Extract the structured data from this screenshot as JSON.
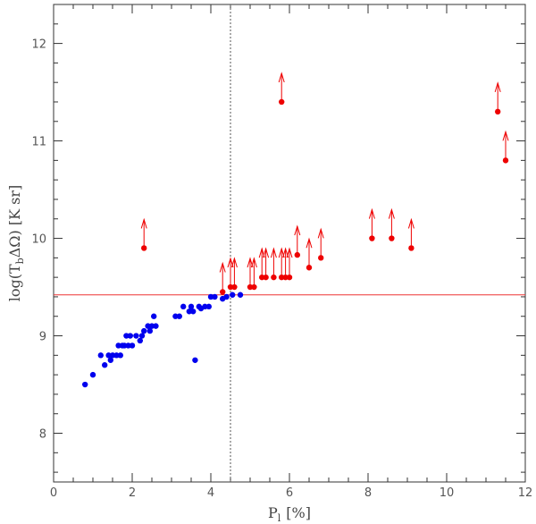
{
  "chart_data": {
    "type": "scatter",
    "title": "",
    "xlabel": "P",
    "xlabel_sub": "l",
    "xlabel_unit": "[%]",
    "ylabel": "log(T",
    "ylabel_sub": "b",
    "ylabel_rest": "ΔΩ)  [K sr]",
    "xlim": [
      0,
      12
    ],
    "ylim": [
      7.5,
      12.4
    ],
    "x_ticks": [
      0,
      2,
      4,
      6,
      8,
      10,
      12
    ],
    "y_ticks": [
      8,
      9,
      10,
      11,
      12
    ],
    "reference_lines": {
      "vertical_x": 4.5,
      "horizontal_y": 9.42
    },
    "colors": {
      "series_blue": "#0000ee",
      "series_red": "#ee0000",
      "hline": "#ee3333",
      "vline": "#555555",
      "axes": "#333333"
    },
    "series": [
      {
        "name": "blue",
        "marker": "filled-circle",
        "points": [
          [
            0.8,
            8.5
          ],
          [
            1.0,
            8.6
          ],
          [
            1.2,
            8.8
          ],
          [
            1.3,
            8.7
          ],
          [
            1.4,
            8.8
          ],
          [
            1.45,
            8.75
          ],
          [
            1.5,
            8.8
          ],
          [
            1.6,
            8.8
          ],
          [
            1.65,
            8.9
          ],
          [
            1.7,
            8.8
          ],
          [
            1.75,
            8.9
          ],
          [
            1.8,
            8.9
          ],
          [
            1.85,
            9.0
          ],
          [
            1.9,
            8.9
          ],
          [
            1.95,
            9.0
          ],
          [
            2.0,
            8.9
          ],
          [
            2.1,
            9.0
          ],
          [
            2.2,
            8.95
          ],
          [
            2.25,
            9.0
          ],
          [
            2.3,
            9.05
          ],
          [
            2.4,
            9.1
          ],
          [
            2.45,
            9.05
          ],
          [
            2.5,
            9.1
          ],
          [
            2.55,
            9.2
          ],
          [
            2.6,
            9.1
          ],
          [
            3.1,
            9.2
          ],
          [
            3.2,
            9.2
          ],
          [
            3.3,
            9.3
          ],
          [
            3.45,
            9.25
          ],
          [
            3.5,
            9.3
          ],
          [
            3.55,
            9.25
          ],
          [
            3.6,
            8.75
          ],
          [
            3.7,
            9.3
          ],
          [
            3.75,
            9.28
          ],
          [
            3.85,
            9.3
          ],
          [
            3.95,
            9.3
          ],
          [
            4.0,
            9.4
          ],
          [
            4.1,
            9.4
          ],
          [
            4.3,
            9.38
          ],
          [
            4.4,
            9.4
          ],
          [
            4.55,
            9.42
          ],
          [
            4.75,
            9.42
          ]
        ]
      },
      {
        "name": "red (lower limits)",
        "marker": "filled-circle-with-up-arrow",
        "points": [
          [
            2.3,
            9.9
          ],
          [
            4.3,
            9.45
          ],
          [
            4.5,
            9.5
          ],
          [
            4.6,
            9.5
          ],
          [
            5.0,
            9.5
          ],
          [
            5.1,
            9.5
          ],
          [
            5.3,
            9.6
          ],
          [
            5.4,
            9.6
          ],
          [
            5.6,
            9.6
          ],
          [
            5.8,
            9.6
          ],
          [
            5.9,
            9.6
          ],
          [
            6.0,
            9.6
          ],
          [
            6.2,
            9.83
          ],
          [
            6.5,
            9.7
          ],
          [
            6.8,
            9.8
          ],
          [
            5.8,
            11.4
          ],
          [
            8.1,
            10.0
          ],
          [
            8.6,
            10.0
          ],
          [
            9.1,
            9.9
          ],
          [
            11.3,
            11.3
          ],
          [
            11.5,
            10.8
          ]
        ]
      }
    ]
  }
}
